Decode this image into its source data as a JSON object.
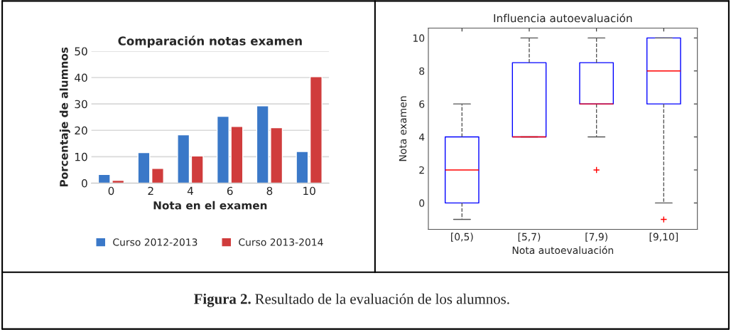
{
  "chart_data": [
    {
      "type": "bar",
      "title": "Comparación notas examen",
      "xlabel": "Nota en el examen",
      "ylabel": "Porcentaje de alumnos",
      "categories": [
        "0",
        "2",
        "4",
        "6",
        "8",
        "10"
      ],
      "series": [
        {
          "name": "Curso 2012-2013",
          "color": "#3a78c8",
          "values": [
            3.3,
            11.6,
            18.3,
            25.3,
            29.3,
            12
          ]
        },
        {
          "name": "Curso 2013-2014",
          "color": "#d03c3c",
          "values": [
            1.1,
            5.6,
            10.3,
            21.5,
            21,
            40.3
          ]
        }
      ],
      "ylim": [
        0,
        50
      ],
      "yticks": [
        0,
        10,
        20,
        30,
        40,
        50
      ],
      "grid": "y",
      "legend": "bottom",
      "annotations": [
        "Figura 2.",
        "Resultado de la evaluación de los alumnos."
      ]
    },
    {
      "type": "box",
      "title": "Influencia autoevaluación",
      "xlabel": "Nota autoevaluación",
      "ylabel": "Nota examen",
      "categories": [
        "[0,5)",
        "[5,7)",
        "[7,9)",
        "[9,10]"
      ],
      "boxes": [
        {
          "low": -1,
          "q1": 0,
          "median": 2,
          "q3": 4,
          "high": 6
        },
        {
          "low": 4,
          "q1": 4,
          "median": 4,
          "q3": 8.5,
          "high": 10
        },
        {
          "low": 4,
          "q1": 6,
          "median": 6,
          "q3": 8.5,
          "high": 10,
          "outliers": [
            2
          ]
        },
        {
          "low": 0,
          "q1": 6,
          "median": 8,
          "q3": 10,
          "high": 10,
          "outliers": [
            -1
          ]
        }
      ],
      "ylim": [
        -1.6,
        10.6
      ],
      "yticks": [
        0,
        2,
        4,
        6,
        8,
        10
      ],
      "grid": false
    }
  ]
}
